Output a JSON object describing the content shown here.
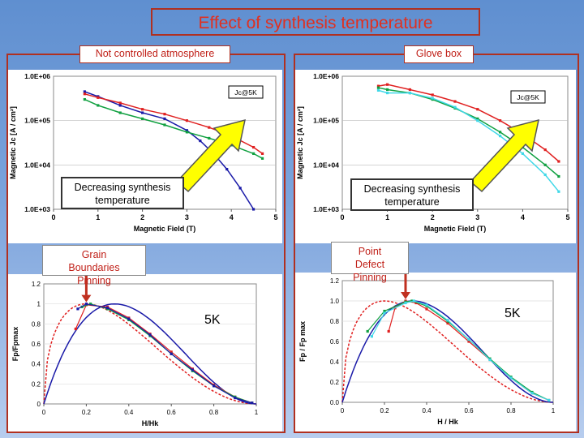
{
  "slide": {
    "title": "Effect of synthesis temperature",
    "panel_left_tag": "Not controlled atmosphere",
    "panel_right_tag": "Glove box",
    "note_left": "Grain Boundaries Pinning",
    "note_right": "Point Defect Pinning",
    "temp_label_left": "5K",
    "temp_label_right": "5K",
    "arrow_left_caption": "Decreasing synthesis temperature",
    "arrow_right_caption": "Decreasing synthesis temperature",
    "colors": {
      "title": "#e03020",
      "highlight": "#ffff00",
      "red": "#e02020",
      "green": "#10a040",
      "blue": "#1a1aa8",
      "cyan": "#40d8e8"
    }
  },
  "chart_data": [
    {
      "id": "jc-left",
      "type": "line",
      "ylabel": "Magnetic Jc [A / cm²]",
      "xlabel": "Magnetic Field (T)",
      "legend": "Jc@5K",
      "xlim": [
        0,
        5
      ],
      "ylim": [
        1000,
        1000000
      ],
      "yscale": "log",
      "xticks": [
        "0",
        "1",
        "2",
        "3",
        "4",
        "5"
      ],
      "yticks": [
        "1.0E+03",
        "1.0E+04",
        "1.0E+05",
        "1.0E+06"
      ],
      "series": [
        {
          "color": "#1a1aa8",
          "marker": "square",
          "x": [
            0.7,
            1.0,
            1.5,
            2.0,
            2.5,
            3.0,
            3.3,
            3.6,
            3.9,
            4.2,
            4.5
          ],
          "y": [
            450000,
            350000,
            220000,
            150000,
            110000,
            60000,
            35000,
            18000,
            8000,
            3000,
            1000
          ]
        },
        {
          "color": "#e02020",
          "marker": "diamond",
          "x": [
            0.7,
            1.0,
            1.5,
            2.0,
            2.5,
            3.0,
            3.5,
            4.0,
            4.5,
            4.7
          ],
          "y": [
            400000,
            330000,
            250000,
            180000,
            140000,
            100000,
            70000,
            45000,
            25000,
            18000
          ]
        },
        {
          "color": "#10a040",
          "marker": "triangle",
          "x": [
            0.7,
            1.0,
            1.5,
            2.0,
            2.5,
            3.0,
            3.5,
            4.0,
            4.5,
            4.7
          ],
          "y": [
            300000,
            220000,
            150000,
            110000,
            80000,
            55000,
            40000,
            28000,
            18000,
            14000
          ]
        }
      ]
    },
    {
      "id": "jc-right",
      "type": "line",
      "ylabel": "Magnetic Jc [A / cm²]",
      "xlabel": "Magnetic Field (T)",
      "legend": "Jc@5K",
      "xlim": [
        0,
        5
      ],
      "ylim": [
        1000,
        1000000
      ],
      "yscale": "log",
      "xticks": [
        "0",
        "1",
        "2",
        "3",
        "4",
        "5"
      ],
      "yticks": [
        "1.0E+03",
        "1.0E+04",
        "1.0E+05",
        "1.0E+06"
      ],
      "series": [
        {
          "color": "#e02020",
          "marker": "diamond",
          "x": [
            0.8,
            1.0,
            1.5,
            2.0,
            2.5,
            3.0,
            3.5,
            4.0,
            4.5,
            4.8
          ],
          "y": [
            600000,
            650000,
            500000,
            380000,
            270000,
            180000,
            100000,
            50000,
            22000,
            12000
          ]
        },
        {
          "color": "#10a040",
          "marker": "triangle",
          "x": [
            0.8,
            1.0,
            1.5,
            2.0,
            2.5,
            3.0,
            3.5,
            4.0,
            4.5,
            4.8
          ],
          "y": [
            550000,
            500000,
            420000,
            300000,
            190000,
            110000,
            55000,
            25000,
            10000,
            5500
          ]
        },
        {
          "color": "#40d8e8",
          "marker": "circle",
          "x": [
            0.8,
            1.0,
            1.5,
            2.0,
            2.5,
            3.0,
            3.5,
            4.0,
            4.5,
            4.8
          ],
          "y": [
            480000,
            420000,
            420000,
            320000,
            200000,
            100000,
            45000,
            18000,
            6000,
            2500
          ]
        }
      ]
    },
    {
      "id": "fp-left",
      "type": "line",
      "ylabel": "Fp/Fpmax",
      "xlabel": "H/Hk",
      "xlim": [
        0,
        1
      ],
      "ylim": [
        0,
        1.2
      ],
      "xticks": [
        "0",
        "0.2",
        "0.4",
        "0.6",
        "0.8",
        "1"
      ],
      "yticks": [
        "0",
        "0.2",
        "0.4",
        "0.6",
        "0.8",
        "1",
        "1.2"
      ],
      "series": [
        {
          "color": "#e02020",
          "style": "dashed",
          "model": "gb_pinning",
          "x": [
            0,
            0.05,
            0.1,
            0.15,
            0.2,
            0.3,
            0.4,
            0.5,
            0.6,
            0.7,
            0.8,
            0.9,
            1.0
          ],
          "y": [
            0,
            0.58,
            0.82,
            0.95,
            1.0,
            0.98,
            0.87,
            0.71,
            0.53,
            0.36,
            0.2,
            0.08,
            0
          ]
        },
        {
          "color": "#1a1aa8",
          "style": "solid",
          "model": "point_pinning",
          "x": [
            0,
            0.1,
            0.2,
            0.33,
            0.4,
            0.5,
            0.6,
            0.7,
            0.8,
            0.9,
            1.0
          ],
          "y": [
            0,
            0.3,
            0.73,
            1.0,
            0.97,
            0.84,
            0.64,
            0.42,
            0.22,
            0.07,
            0
          ]
        },
        {
          "color": "#e02020",
          "style": "markers",
          "x": [
            0.15,
            0.2,
            0.3,
            0.4,
            0.5,
            0.6,
            0.7,
            0.8,
            0.9,
            0.98
          ],
          "y": [
            0.75,
            0.99,
            0.97,
            0.86,
            0.7,
            0.52,
            0.35,
            0.19,
            0.07,
            0.01
          ]
        },
        {
          "color": "#10a040",
          "style": "markers",
          "x": [
            0.18,
            0.22,
            0.3,
            0.4,
            0.5,
            0.6,
            0.7,
            0.8,
            0.9,
            0.98
          ],
          "y": [
            0.97,
            1.0,
            0.95,
            0.84,
            0.68,
            0.5,
            0.33,
            0.18,
            0.07,
            0.01
          ]
        },
        {
          "color": "#1a1aa8",
          "style": "markers",
          "x": [
            0.16,
            0.2,
            0.3,
            0.4,
            0.5,
            0.6,
            0.7,
            0.8,
            0.9,
            0.98
          ],
          "y": [
            0.95,
            1.0,
            0.96,
            0.85,
            0.69,
            0.5,
            0.34,
            0.18,
            0.06,
            0.01
          ]
        }
      ]
    },
    {
      "id": "fp-right",
      "type": "line",
      "ylabel": "Fp / Fp max",
      "xlabel": "H / Hk",
      "xlim": [
        0,
        1
      ],
      "ylim": [
        0,
        1.2
      ],
      "xticks": [
        "0",
        "0.2",
        "0.4",
        "0.6",
        "0.8",
        "1"
      ],
      "yticks": [
        "0.0",
        "0.2",
        "0.4",
        "0.6",
        "0.8",
        "1.0",
        "1.2"
      ],
      "series": [
        {
          "color": "#e02020",
          "style": "dashed",
          "model": "gb_pinning",
          "x": [
            0,
            0.05,
            0.1,
            0.15,
            0.2,
            0.3,
            0.4,
            0.5,
            0.6,
            0.7,
            0.8,
            0.9,
            1.0
          ],
          "y": [
            0,
            0.58,
            0.82,
            0.95,
            1.0,
            0.98,
            0.87,
            0.71,
            0.53,
            0.36,
            0.2,
            0.08,
            0
          ]
        },
        {
          "color": "#1a1aa8",
          "style": "solid",
          "model": "point_pinning",
          "x": [
            0,
            0.1,
            0.2,
            0.33,
            0.4,
            0.5,
            0.6,
            0.7,
            0.8,
            0.9,
            1.0
          ],
          "y": [
            0,
            0.3,
            0.73,
            1.0,
            0.97,
            0.84,
            0.64,
            0.42,
            0.22,
            0.07,
            0
          ]
        },
        {
          "color": "#e02020",
          "style": "markers",
          "x": [
            0.22,
            0.25,
            0.3,
            0.35,
            0.4,
            0.5,
            0.6,
            0.7,
            0.8,
            0.9,
            0.98
          ],
          "y": [
            0.7,
            0.93,
            1.0,
            0.98,
            0.92,
            0.78,
            0.6,
            0.42,
            0.24,
            0.09,
            0.02
          ]
        },
        {
          "color": "#10a040",
          "style": "markers",
          "x": [
            0.12,
            0.2,
            0.3,
            0.33,
            0.4,
            0.5,
            0.6,
            0.7,
            0.8,
            0.9,
            0.98
          ],
          "y": [
            0.7,
            0.9,
            0.99,
            1.0,
            0.95,
            0.8,
            0.62,
            0.43,
            0.25,
            0.1,
            0.02
          ]
        },
        {
          "color": "#40d8e8",
          "style": "markers",
          "x": [
            0.14,
            0.2,
            0.3,
            0.34,
            0.4,
            0.5,
            0.6,
            0.7,
            0.8,
            0.9,
            0.98
          ],
          "y": [
            0.65,
            0.88,
            0.98,
            1.0,
            0.96,
            0.81,
            0.62,
            0.42,
            0.24,
            0.09,
            0.02
          ]
        }
      ]
    }
  ]
}
